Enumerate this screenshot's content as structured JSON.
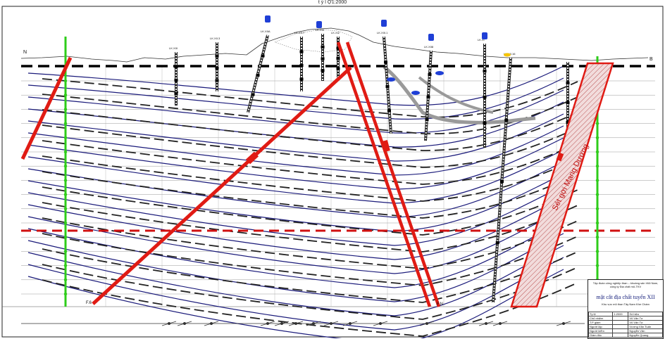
{
  "header": {
    "scale": "t ỷ l Ợ1:2000"
  },
  "section": {
    "left_end": "N",
    "right_end": "B",
    "boreholes": [
      "LK.XIII",
      "LK.XII.3",
      "LK.XIIA",
      "LK.XII.7",
      "LK.XIIi",
      "LK.XI2",
      "LK.XIII.1",
      "LK.XII8",
      "LK.Xi",
      "LK.XII.16"
    ],
    "faults": [
      "F.6",
      "F.N"
    ],
    "fault_zone_label": "Sét gợi Mạng Dương"
  },
  "colors": {
    "fault": "#e01b14",
    "exploration_line": "#2ecc1a",
    "datum_line": "#000000",
    "lower_datum": "#d01010",
    "coal_seam": "#1a1a7a",
    "borehole_marker": "#1f3fd6"
  },
  "legend": {
    "organization": "Tập đoàn công nghiệp than – khoáng sản Việt Nam, công ty Địa chất mỏ-TKV",
    "title": "mặt cắt địa chất tuyến XII",
    "subtitle": "Khu vực mỏ than Tây Nam Khe Chàm",
    "rows": [
      [
        "Tỷ lệ",
        "1:2000",
        "Số hiệu"
      ],
      [
        "Chủ nhiệm",
        "",
        "Vũ Văn Tư"
      ],
      [
        "T.P giám",
        "",
        "Vũ Văn Tư"
      ],
      [
        "Người lập",
        "",
        "Vương Văn Tuấn"
      ],
      [
        "Người kiểm",
        "",
        "Nguyễn Văn"
      ],
      [
        "Giám đốc",
        "",
        "Nguyễn Quang"
      ]
    ]
  }
}
